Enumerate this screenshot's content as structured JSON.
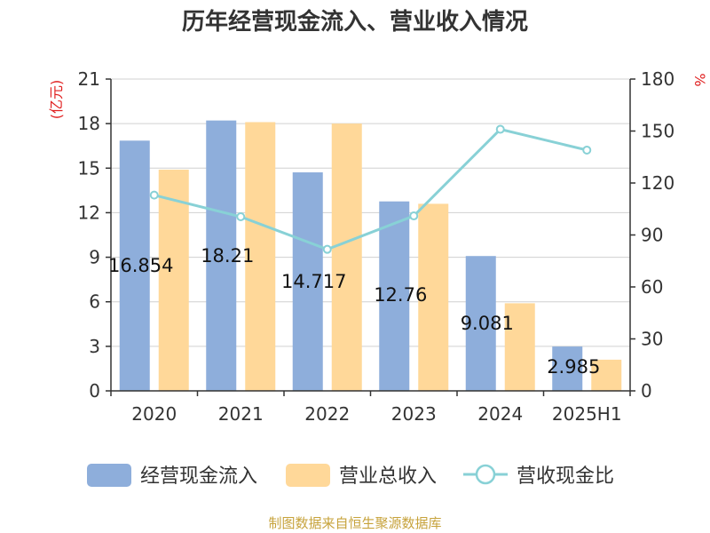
{
  "chart_data": {
    "type": "bar",
    "title": "历年经营现金流入、营业收入情况",
    "categories": [
      "2020",
      "2021",
      "2022",
      "2023",
      "2024",
      "2025H1"
    ],
    "series": [
      {
        "name": "经营现金流入",
        "type": "bar",
        "axis": "left",
        "color": "#8eaedb",
        "values": [
          16.854,
          18.21,
          14.717,
          12.76,
          9.081,
          2.985
        ]
      },
      {
        "name": "营业总收入",
        "type": "bar",
        "axis": "left",
        "color": "#ffd899",
        "values": [
          14.9,
          18.1,
          18.0,
          12.6,
          5.9,
          2.1
        ]
      },
      {
        "name": "营收现金比",
        "type": "line",
        "axis": "right",
        "color": "#88d1d6",
        "values": [
          113,
          100.5,
          81.7,
          101,
          151,
          139
        ]
      }
    ],
    "data_labels": [
      "16.854",
      "18.21",
      "14.717",
      "12.76",
      "9.081",
      "2.985"
    ],
    "left_axis": {
      "unit": "(亿元)",
      "min": 0,
      "max": 21,
      "ticks": [
        "0",
        "3",
        "6",
        "9",
        "12",
        "15",
        "18",
        "21"
      ]
    },
    "right_axis": {
      "unit": "%",
      "min": 0,
      "max": 180,
      "ticks": [
        "0",
        "30",
        "60",
        "90",
        "120",
        "150",
        "180"
      ]
    },
    "grid": true,
    "legend_position": "bottom",
    "source": "制图数据来自恒生聚源数据库"
  }
}
